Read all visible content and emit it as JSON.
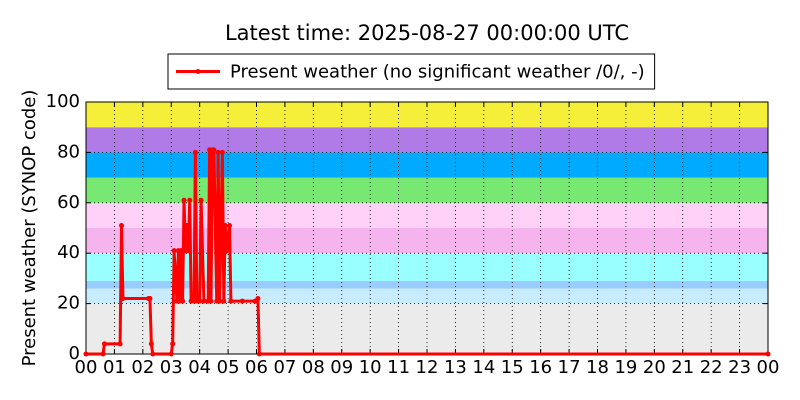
{
  "chart_data": {
    "type": "line",
    "title": "Latest time: 2025-08-27 00:00:00 UTC",
    "ylabel": "Present weather (SYNOP code)",
    "legend": "top",
    "grid": true,
    "xlim": [
      0,
      24
    ],
    "ylim": [
      0,
      100
    ],
    "yticks": [
      0,
      20,
      40,
      60,
      80,
      100
    ],
    "xticks": [
      {
        "value": 0,
        "label": "00"
      },
      {
        "value": 1,
        "label": "01"
      },
      {
        "value": 2,
        "label": "02"
      },
      {
        "value": 3,
        "label": "03"
      },
      {
        "value": 4,
        "label": "04"
      },
      {
        "value": 5,
        "label": "05"
      },
      {
        "value": 6,
        "label": "06"
      },
      {
        "value": 7,
        "label": "07"
      },
      {
        "value": 8,
        "label": "08"
      },
      {
        "value": 9,
        "label": "09"
      },
      {
        "value": 10,
        "label": "10"
      },
      {
        "value": 11,
        "label": "11"
      },
      {
        "value": 12,
        "label": "12"
      },
      {
        "value": 13,
        "label": "13"
      },
      {
        "value": 14,
        "label": "14"
      },
      {
        "value": 15,
        "label": "15"
      },
      {
        "value": 16,
        "label": "16"
      },
      {
        "value": 17,
        "label": "17"
      },
      {
        "value": 18,
        "label": "18"
      },
      {
        "value": 19,
        "label": "19"
      },
      {
        "value": 20,
        "label": "20"
      },
      {
        "value": 21,
        "label": "21"
      },
      {
        "value": 22,
        "label": "22"
      },
      {
        "value": 23,
        "label": "23"
      },
      {
        "value": 24,
        "label": "00"
      }
    ],
    "bands": [
      {
        "from": 0,
        "to": 20,
        "color": "#ebebeb"
      },
      {
        "from": 20,
        "to": 26,
        "color": "#c8ecff"
      },
      {
        "from": 26,
        "to": 29,
        "color": "#99ccff"
      },
      {
        "from": 29,
        "to": 40,
        "color": "#99ffff"
      },
      {
        "from": 40,
        "to": 50,
        "color": "#f5b4ee"
      },
      {
        "from": 50,
        "to": 60,
        "color": "#ffd0f8"
      },
      {
        "from": 60,
        "to": 70,
        "color": "#77e872"
      },
      {
        "from": 70,
        "to": 80,
        "color": "#00aaff"
      },
      {
        "from": 80,
        "to": 90,
        "color": "#b07be6"
      },
      {
        "from": 90,
        "to": 100,
        "color": "#f5ef3a"
      }
    ],
    "x": [
      0,
      0.6,
      0.65,
      1.2,
      1.25,
      1.3,
      2.2,
      2.25,
      2.3,
      2.35,
      3.0,
      3.05,
      3.1,
      3.2,
      3.25,
      3.3,
      3.35,
      3.4,
      3.45,
      3.5,
      3.55,
      3.6,
      3.65,
      3.7,
      3.8,
      3.85,
      3.9,
      4.0,
      4.05,
      4.15,
      4.3,
      4.35,
      4.4,
      4.45,
      4.5,
      4.6,
      4.65,
      4.7,
      4.8,
      4.85,
      4.9,
      4.95,
      5.05,
      5.1,
      5.5,
      5.95,
      6.05,
      6.1,
      24
    ],
    "series": [
      {
        "name": "Present weather (no significant weather /0/, -)",
        "color": "#ff0000",
        "values": [
          0,
          0,
          4,
          4,
          51,
          22,
          22,
          22,
          4,
          0,
          0,
          4,
          41,
          21,
          41,
          21,
          41,
          21,
          61,
          41,
          51,
          41,
          61,
          21,
          21,
          80,
          21,
          21,
          61,
          21,
          21,
          81,
          21,
          81,
          81,
          21,
          80,
          21,
          80,
          21,
          51,
          41,
          51,
          21,
          21,
          21,
          22,
          0,
          0
        ]
      }
    ]
  }
}
